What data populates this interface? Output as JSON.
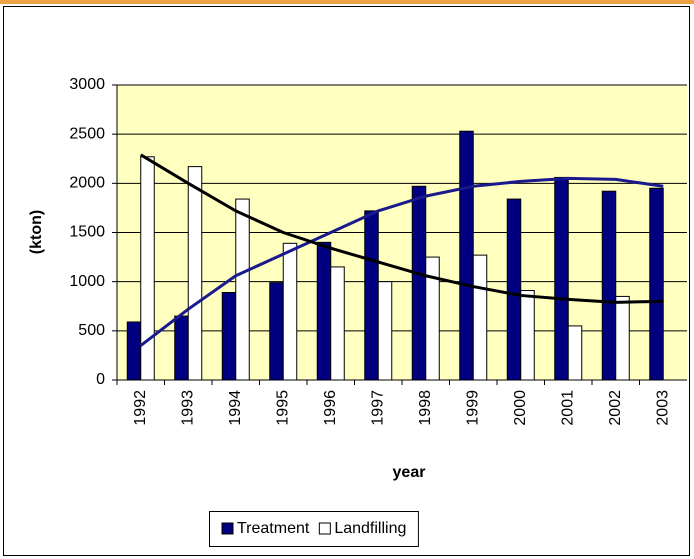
{
  "chart_data": {
    "type": "bar",
    "categories": [
      "1992",
      "1993",
      "1994",
      "1995",
      "1996",
      "1997",
      "1998",
      "1999",
      "2000",
      "2001",
      "2002",
      "2003"
    ],
    "x_label": "year",
    "y_label": "(kton)",
    "series": [
      {
        "name": "Treatment",
        "color": "#000080",
        "type": "bar",
        "values": [
          590,
          650,
          890,
          990,
          1400,
          1720,
          1970,
          2530,
          1840,
          2060,
          1920,
          1950
        ]
      },
      {
        "name": "Landfilling",
        "color": "#ffffff",
        "type": "bar",
        "values": [
          2270,
          2170,
          1840,
          1390,
          1150,
          1000,
          1250,
          1270,
          910,
          550,
          850,
          null
        ]
      },
      {
        "color": "#1a1a8c",
        "type": "line",
        "values": [
          350,
          720,
          1060,
          1280,
          1500,
          1720,
          1870,
          1970,
          2020,
          2050,
          2040,
          1970
        ]
      },
      {
        "color": "#000000",
        "type": "line",
        "values": [
          2290,
          2000,
          1720,
          1500,
          1340,
          1200,
          1060,
          950,
          860,
          820,
          790,
          800
        ]
      }
    ],
    "ylim": [
      0,
      3000
    ],
    "yticks": [
      0,
      500,
      1000,
      1500,
      2000,
      2500,
      3000
    ],
    "grid": true,
    "plot_background": "#ffffc0",
    "legend": "bottom"
  }
}
